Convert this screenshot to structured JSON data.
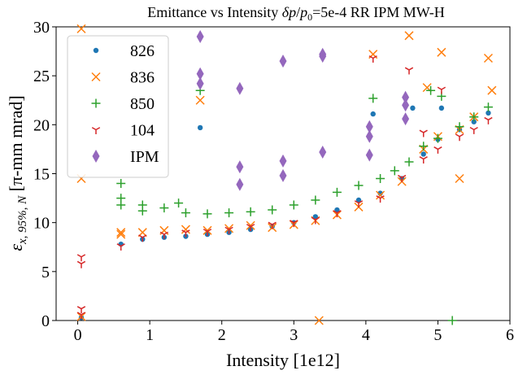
{
  "chart_data": {
    "type": "scatter",
    "title": "Emittance vs Intensity δp/p₀=5e-4 RR IPM MW-H",
    "title_parts": {
      "pre": "Emittance vs Intensity ",
      "delta": "δp",
      "slash": "/",
      "p": "p",
      "sub0": "0",
      "post": "=5e-4 RR IPM MW-H"
    },
    "xlabel": "Intensity [1e12]",
    "ylabel": "εx,95%,N [π-mm mrad]",
    "ylabel_parts": {
      "eps": "ε",
      "sub": "x, 95%, N",
      "unit": " [π-mm mrad]"
    },
    "xlim": [
      -0.3,
      6.0
    ],
    "ylim": [
      0,
      30
    ],
    "xticks": [
      "0",
      "1",
      "2",
      "3",
      "4",
      "5",
      "6"
    ],
    "yticks": [
      "0",
      "5",
      "10",
      "15",
      "20",
      "25",
      "30"
    ],
    "grid": false,
    "legend_position": "top-left",
    "series": [
      {
        "name": "826",
        "marker": "circle",
        "color": "#1f77b4",
        "points": [
          [
            0.05,
            0.3
          ],
          [
            0.6,
            7.8
          ],
          [
            0.9,
            8.3
          ],
          [
            1.2,
            8.5
          ],
          [
            1.5,
            8.6
          ],
          [
            1.7,
            19.7
          ],
          [
            1.8,
            8.8
          ],
          [
            2.1,
            9.0
          ],
          [
            2.4,
            9.3
          ],
          [
            2.7,
            9.6
          ],
          [
            3.0,
            10.0
          ],
          [
            3.3,
            10.6
          ],
          [
            3.6,
            11.3
          ],
          [
            3.9,
            12.3
          ],
          [
            4.1,
            21.1
          ],
          [
            4.2,
            13.0
          ],
          [
            4.5,
            14.5
          ],
          [
            4.65,
            21.7
          ],
          [
            4.8,
            17.0
          ],
          [
            5.0,
            18.5
          ],
          [
            5.05,
            21.7
          ],
          [
            5.3,
            19.5
          ],
          [
            5.5,
            20.3
          ],
          [
            5.7,
            21.2
          ]
        ]
      },
      {
        "name": "836",
        "marker": "x",
        "color": "#ff7f0e",
        "points": [
          [
            0.05,
            29.8
          ],
          [
            0.05,
            14.5
          ],
          [
            0.05,
            0.4
          ],
          [
            0.6,
            8.8
          ],
          [
            0.6,
            9.0
          ],
          [
            0.9,
            9.0
          ],
          [
            1.2,
            9.2
          ],
          [
            1.5,
            9.3
          ],
          [
            1.7,
            22.5
          ],
          [
            1.8,
            9.2
          ],
          [
            2.1,
            9.4
          ],
          [
            2.4,
            9.7
          ],
          [
            2.7,
            9.5
          ],
          [
            3.0,
            9.8
          ],
          [
            3.3,
            10.2
          ],
          [
            3.35,
            0.0
          ],
          [
            3.6,
            10.8
          ],
          [
            3.9,
            11.6
          ],
          [
            4.1,
            27.2
          ],
          [
            4.2,
            12.8
          ],
          [
            4.5,
            14.2
          ],
          [
            4.6,
            29.1
          ],
          [
            4.8,
            17.5
          ],
          [
            4.85,
            23.8
          ],
          [
            5.0,
            18.8
          ],
          [
            5.05,
            27.4
          ],
          [
            5.3,
            14.5
          ],
          [
            5.3,
            19.5
          ],
          [
            5.5,
            20.8
          ],
          [
            5.7,
            26.8
          ],
          [
            5.75,
            23.5
          ]
        ]
      },
      {
        "name": "850",
        "marker": "plus",
        "color": "#2ca02c",
        "points": [
          [
            0.6,
            14.0
          ],
          [
            0.6,
            12.5
          ],
          [
            0.6,
            11.8
          ],
          [
            0.9,
            11.8
          ],
          [
            0.9,
            11.2
          ],
          [
            1.2,
            11.5
          ],
          [
            1.4,
            12.0
          ],
          [
            1.5,
            11.0
          ],
          [
            1.7,
            23.5
          ],
          [
            1.8,
            10.9
          ],
          [
            2.1,
            11.0
          ],
          [
            2.4,
            11.1
          ],
          [
            2.7,
            11.3
          ],
          [
            3.0,
            11.8
          ],
          [
            3.3,
            12.3
          ],
          [
            3.6,
            13.1
          ],
          [
            3.9,
            13.8
          ],
          [
            4.1,
            22.7
          ],
          [
            4.2,
            14.5
          ],
          [
            4.4,
            15.3
          ],
          [
            4.6,
            16.2
          ],
          [
            4.8,
            17.8
          ],
          [
            4.9,
            23.5
          ],
          [
            5.0,
            18.6
          ],
          [
            5.05,
            22.9
          ],
          [
            5.2,
            0.0
          ],
          [
            5.3,
            19.8
          ],
          [
            5.5,
            20.8
          ],
          [
            5.7,
            21.8
          ]
        ]
      },
      {
        "name": "104",
        "marker": "tri_down",
        "color": "#d62728",
        "points": [
          [
            0.05,
            6.5
          ],
          [
            0.05,
            5.8
          ],
          [
            0.05,
            1.2
          ],
          [
            0.05,
            0.6
          ],
          [
            0.6,
            7.6
          ],
          [
            0.9,
            8.5
          ],
          [
            1.2,
            8.8
          ],
          [
            1.5,
            9.0
          ],
          [
            1.8,
            9.1
          ],
          [
            2.1,
            9.3
          ],
          [
            2.4,
            9.6
          ],
          [
            2.7,
            9.8
          ],
          [
            3.0,
            10.0
          ],
          [
            3.3,
            10.3
          ],
          [
            3.6,
            11.0
          ],
          [
            3.9,
            12.0
          ],
          [
            4.1,
            26.8
          ],
          [
            4.2,
            12.5
          ],
          [
            4.5,
            14.6
          ],
          [
            4.6,
            25.6
          ],
          [
            4.8,
            16.5
          ],
          [
            4.8,
            19.2
          ],
          [
            5.0,
            17.5
          ],
          [
            5.05,
            23.6
          ],
          [
            5.3,
            18.8
          ],
          [
            5.5,
            19.5
          ],
          [
            5.7,
            20.5
          ]
        ]
      },
      {
        "name": "IPM",
        "marker": "thin_diamond",
        "color": "#9467bd",
        "points": [
          [
            1.7,
            29.0
          ],
          [
            1.7,
            25.2
          ],
          [
            1.7,
            24.2
          ],
          [
            2.25,
            23.7
          ],
          [
            2.25,
            15.7
          ],
          [
            2.25,
            13.9
          ],
          [
            2.85,
            26.5
          ],
          [
            2.85,
            16.3
          ],
          [
            2.85,
            14.8
          ],
          [
            3.4,
            27.2
          ],
          [
            3.4,
            27.0
          ],
          [
            3.4,
            17.2
          ],
          [
            4.05,
            19.8
          ],
          [
            4.05,
            18.8
          ],
          [
            4.05,
            16.9
          ],
          [
            4.55,
            22.8
          ],
          [
            4.55,
            22.0
          ],
          [
            4.55,
            20.6
          ]
        ]
      }
    ]
  }
}
